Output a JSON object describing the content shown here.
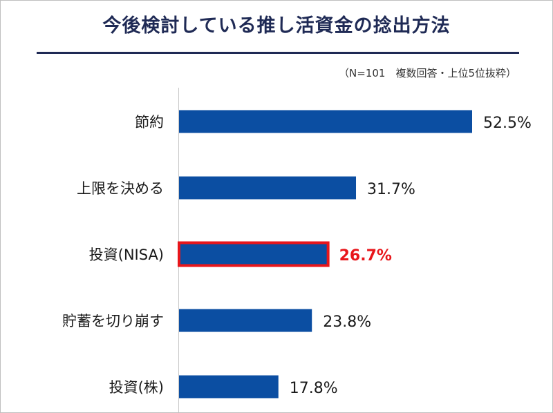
{
  "title": "今後検討している推し活資金の捻出方法",
  "note": "（N=101　複数回答・上位5位抜粋）",
  "colors": {
    "bar": "#0b4ea2",
    "highlight": "#e8161b",
    "axis": "#c8c8c8",
    "title": "#1f2a55"
  },
  "chart_data": {
    "type": "bar",
    "orientation": "horizontal",
    "title": "今後検討している推し活資金の捻出方法",
    "categories": [
      "節約",
      "上限を決める",
      "投資(NISA)",
      "貯蓄を切り崩す",
      "投資(株)"
    ],
    "values": [
      52.5,
      31.7,
      26.7,
      23.8,
      17.8
    ],
    "value_labels": [
      "52.5%",
      "31.7%",
      "26.7%",
      "23.8%",
      "17.8%"
    ],
    "highlight_index": 2,
    "xlim": [
      0,
      52.5
    ],
    "grid": false,
    "legend": "none"
  }
}
